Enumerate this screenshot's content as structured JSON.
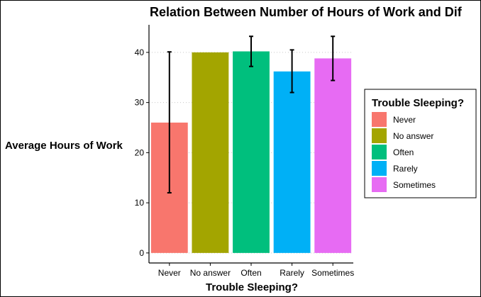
{
  "chart_data": {
    "type": "bar",
    "title": "Relation Between Number of Hours of Work and Dif",
    "xlabel": "Trouble Sleeping?",
    "ylabel": "Average Hours of Work",
    "categories": [
      "Never",
      "No answer",
      "Often",
      "Rarely",
      "Sometimes"
    ],
    "values": [
      26.0,
      40.0,
      40.2,
      36.2,
      38.8
    ],
    "error_low": [
      12.0,
      null,
      37.2,
      32.0,
      34.4
    ],
    "error_high": [
      40.1,
      null,
      43.2,
      40.5,
      43.2
    ],
    "colors": [
      "#F8766D",
      "#A3A500",
      "#00BF7D",
      "#00B0F6",
      "#E76BF3"
    ],
    "ylim": [
      -2,
      45.5
    ],
    "yticks": [
      0,
      10,
      20,
      30,
      40
    ],
    "ytick_labels": [
      "0",
      "10",
      "20",
      "30",
      "40"
    ],
    "grid": "horizontal dotted",
    "legend": {
      "title": "Trouble Sleeping?",
      "placement": "right",
      "entries": [
        "Never",
        "No answer",
        "Often",
        "Rarely",
        "Sometimes"
      ]
    }
  }
}
